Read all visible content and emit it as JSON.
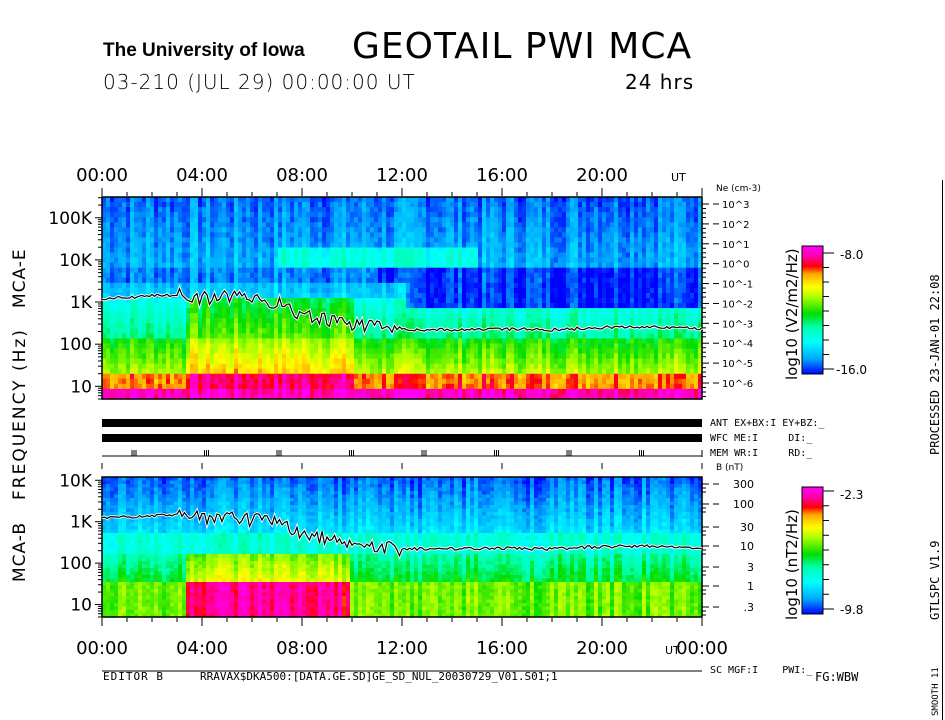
{
  "header": {
    "institution": "The University of Iowa",
    "title": "GEOTAIL PWI MCA",
    "date_line": "03-210 (JUL 29) 00:00:00 UT",
    "duration": "24 hrs"
  },
  "side_labels": {
    "processed": "PROCESSED 23-JAN-01  22:08",
    "program": "GTLSPC   V1.9",
    "smooth": "SMOOTH 11",
    "frequency_axis": "FREQUENCY (Hz)",
    "mca_e": "MCA-E",
    "mca_b": "MCA-B"
  },
  "status": {
    "ant": "ANT EX+BX:I EY+BZ:_",
    "wfc": "WFC ME:I     DI:_",
    "mem": "MEM WR:I     RD:_",
    "sc": "SC MGF:I    PWI:_"
  },
  "footer": {
    "editor": "EDITOR B",
    "file": "RRAVAX$DKA500:[DATA.GE.SD]GE_SD_NUL_20030729_V01.S01;1",
    "fg": "FG:WBW"
  },
  "colors": {
    "magenta": "#ff00ff",
    "red": "#ff0000",
    "orange": "#ff9900",
    "yellow": "#ffff00",
    "green": "#00dd00",
    "cyan": "#00ffff",
    "blue": "#0044ff",
    "darkblue": "#0000ff"
  },
  "chart_data": [
    {
      "type": "heatmap",
      "name": "MCA-E",
      "xlabel": "UT",
      "ylabel": "FREQUENCY (Hz)",
      "x_ticks": [
        "00:00",
        "04:00",
        "08:00",
        "12:00",
        "16:00",
        "20:00"
      ],
      "x_unit_label": "UT",
      "xlim_hours": [
        0,
        24
      ],
      "y_ticks": [
        "10",
        "100",
        "1K",
        "10K",
        "100K"
      ],
      "ylim_hz": [
        5,
        311000
      ],
      "right_axis_title": "Ne (cm-3)",
      "right_axis_ticks": [
        "10^3",
        "10^2",
        "10^1",
        "10^0",
        "10^-1",
        "10^-2",
        "10^-3",
        "10^-4",
        "10^-5",
        "10^-6"
      ],
      "colorbar_label": "log10 (V2/m2/Hz)",
      "colorbar_range": [
        -16.0,
        -8.0
      ],
      "colorbar_max_label": "-8.0",
      "colorbar_min_label": "-16.0",
      "overlay_line_khz": {
        "hours": [
          0,
          2,
          3,
          4,
          5,
          6,
          7,
          7.5,
          8,
          9,
          10,
          11,
          12,
          14,
          16,
          18,
          20,
          22,
          24
        ],
        "freq_hz": [
          1200,
          1400,
          1500,
          1200,
          1300,
          1100,
          1000,
          700,
          500,
          400,
          300,
          250,
          220,
          220,
          230,
          220,
          250,
          260,
          230
        ]
      }
    },
    {
      "type": "heatmap",
      "name": "MCA-B",
      "xlabel": "UT",
      "x_ticks": [
        "00:00",
        "04:00",
        "08:00",
        "12:00",
        "16:00",
        "20:00",
        "00:00"
      ],
      "x_unit_label": "UT",
      "xlim_hours": [
        0,
        24
      ],
      "y_ticks": [
        "10",
        "100",
        "1K",
        "10K"
      ],
      "ylim_hz": [
        5,
        12000
      ],
      "right_axis_title": "B (nT)",
      "right_axis_ticks": [
        "300",
        "100",
        "30",
        "10",
        "3",
        "1",
        ".3"
      ],
      "colorbar_label": "log10 (nT2/Hz)",
      "colorbar_range": [
        -9.8,
        -2.3
      ],
      "colorbar_max_label": "-2.3",
      "colorbar_min_label": "-9.8"
    }
  ]
}
